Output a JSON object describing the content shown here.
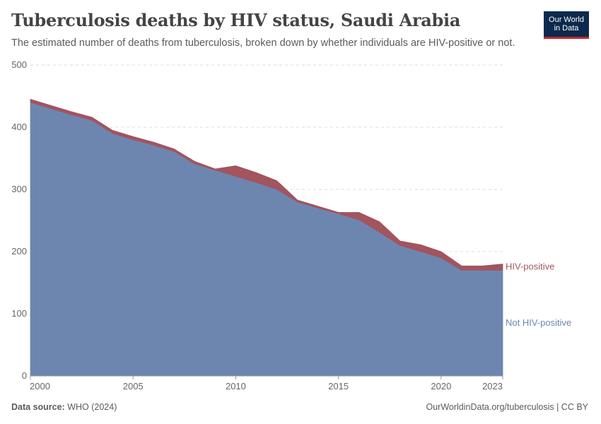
{
  "header": {
    "title": "Tuberculosis deaths by HIV status, Saudi Arabia",
    "subtitle": "The estimated number of deaths from tuberculosis, broken down by whether individuals are HIV-positive or not."
  },
  "logo": {
    "line1": "Our World",
    "line2": "in Data",
    "bg_color": "#0c2a4d",
    "accent_color": "#c3272b"
  },
  "footer": {
    "source_label": "Data source:",
    "source_value": "WHO (2024)",
    "url": "OurWorldinData.org/tuberculosis | CC BY"
  },
  "chart_data": {
    "type": "area",
    "stacked": true,
    "x": [
      2000,
      2001,
      2002,
      2003,
      2004,
      2005,
      2006,
      2007,
      2008,
      2009,
      2010,
      2011,
      2012,
      2013,
      2014,
      2015,
      2016,
      2017,
      2018,
      2019,
      2020,
      2021,
      2022,
      2023
    ],
    "series": [
      {
        "name": "Not HIV-positive",
        "color": "#6d86b0",
        "values": [
          440,
          430,
          420,
          411,
          390,
          380,
          371,
          361,
          341,
          331,
          321,
          311,
          300,
          280,
          270,
          261,
          251,
          231,
          210,
          200,
          190,
          170,
          170,
          170
        ]
      },
      {
        "name": "HIV-positive",
        "color": "#a2545f",
        "values": [
          5,
          5,
          5,
          5,
          5,
          5,
          5,
          4,
          4,
          2,
          17,
          16,
          14,
          3,
          3,
          2,
          12,
          17,
          7,
          11,
          10,
          7,
          7,
          10
        ]
      }
    ],
    "xlim": [
      2000,
      2023
    ],
    "ylim": [
      0,
      500
    ],
    "x_ticks": [
      2000,
      2005,
      2010,
      2015,
      2020,
      2023
    ],
    "y_ticks": [
      0,
      100,
      200,
      300,
      400,
      500
    ],
    "grid": "horizontal dashed",
    "legend": "right-inline"
  }
}
